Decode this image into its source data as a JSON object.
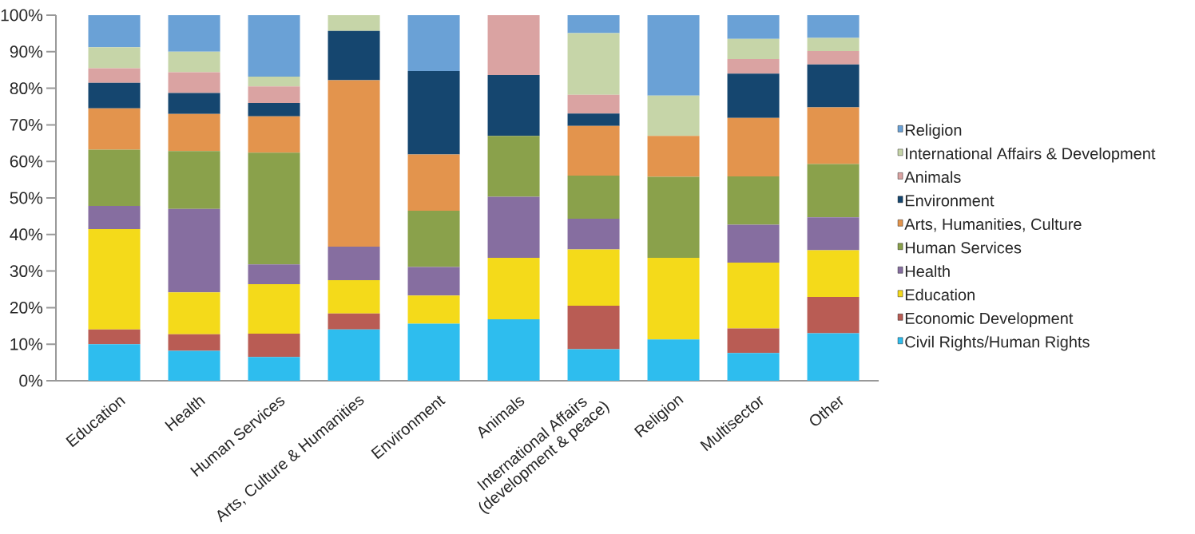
{
  "chart_data": {
    "type": "bar",
    "stacked": true,
    "legend": "right",
    "grid": false,
    "categories": [
      "Education",
      "Health",
      "Human Services",
      "Arts, Culture & Humanities",
      "Environment",
      "Animals",
      "International Affairs (development & peace)",
      "Religion",
      "Multisector",
      "Other"
    ],
    "ylim": [
      0,
      100
    ],
    "yticks": [
      {
        "value": 0,
        "label": "0%"
      },
      {
        "value": 10,
        "label": "10%"
      },
      {
        "value": 20,
        "label": "20%"
      },
      {
        "value": 30,
        "label": "30%"
      },
      {
        "value": 40,
        "label": "40%"
      },
      {
        "value": 50,
        "label": "50%"
      },
      {
        "value": 60,
        "label": "60%"
      },
      {
        "value": 70,
        "label": "70%"
      },
      {
        "value": 80,
        "label": "80%"
      },
      {
        "value": 90,
        "label": "90%"
      },
      {
        "value": 100,
        "label": "100%"
      }
    ],
    "series": [
      {
        "name": "Civil Rights/Human Rights",
        "color": "#2ebdee",
        "values": [
          10,
          8.2,
          6.5,
          14,
          15.6,
          16.8,
          8.6,
          11.3,
          7.6,
          13
        ]
      },
      {
        "name": "Economic Development",
        "color": "#b95c54",
        "values": [
          4,
          4.5,
          6.4,
          4.4,
          0,
          0,
          11.9,
          0,
          6.7,
          9.9
        ]
      },
      {
        "name": "Education",
        "color": "#f4da1a",
        "values": [
          27.5,
          11.5,
          13.5,
          9.1,
          7.7,
          16.8,
          15.4,
          22.3,
          18,
          12.8
        ]
      },
      {
        "name": "Health",
        "color": "#866ea0",
        "values": [
          6.3,
          22.8,
          5.4,
          9.2,
          7.8,
          16.7,
          8.4,
          0,
          10.4,
          9
        ]
      },
      {
        "name": "Human Services",
        "color": "#8aa14b",
        "values": [
          15.4,
          15.8,
          30.6,
          0,
          15.4,
          16.7,
          11.8,
          22.2,
          13.2,
          14.6
        ]
      },
      {
        "name": "Arts, Humanities, Culture",
        "color": "#e3944d",
        "values": [
          11.3,
          10.2,
          9.9,
          45.5,
          15.4,
          0,
          13.6,
          11.2,
          16,
          15.5
        ]
      },
      {
        "name": "Environment",
        "color": "#15466f",
        "values": [
          7,
          5.7,
          3.7,
          13.5,
          22.8,
          16.6,
          3.4,
          0,
          12.1,
          11.7
        ]
      },
      {
        "name": "Animals",
        "color": "#daa3a2",
        "values": [
          4,
          5.7,
          4.5,
          0,
          0,
          16.4,
          5.1,
          0,
          4,
          3.7
        ]
      },
      {
        "name": "International Affairs & Development",
        "color": "#c6d5a8",
        "values": [
          5.7,
          5.6,
          2.7,
          4.3,
          0,
          0,
          16.9,
          11,
          5.5,
          3.6
        ]
      },
      {
        "name": "Religion",
        "color": "#6aa1d6",
        "values": [
          8.8,
          10,
          16.8,
          0,
          15.3,
          0,
          4.9,
          22,
          6.5,
          6.2
        ]
      }
    ]
  }
}
